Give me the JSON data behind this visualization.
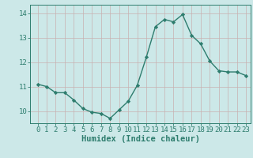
{
  "x": [
    0,
    1,
    2,
    3,
    4,
    5,
    6,
    7,
    8,
    9,
    10,
    11,
    12,
    13,
    14,
    15,
    16,
    17,
    18,
    19,
    20,
    21,
    22,
    23
  ],
  "y": [
    11.1,
    11.0,
    10.75,
    10.75,
    10.45,
    10.1,
    9.95,
    9.9,
    9.7,
    10.05,
    10.4,
    11.05,
    12.2,
    13.45,
    13.75,
    13.65,
    13.95,
    13.1,
    12.75,
    12.05,
    11.65,
    11.6,
    11.6,
    11.45
  ],
  "line_color": "#2e7d6e",
  "marker": "D",
  "marker_size": 2.2,
  "bg_color": "#cce8e8",
  "grid_color_v": "#c8b0b0",
  "grid_color_h": "#c8b0b0",
  "xlabel": "Humidex (Indice chaleur)",
  "xlabel_fontsize": 7.5,
  "tick_fontsize": 6.5,
  "ylim": [
    9.5,
    14.35
  ],
  "yticks": [
    10,
    11,
    12,
    13,
    14
  ],
  "xticks": [
    0,
    1,
    2,
    3,
    4,
    5,
    6,
    7,
    8,
    9,
    10,
    11,
    12,
    13,
    14,
    15,
    16,
    17,
    18,
    19,
    20,
    21,
    22,
    23
  ],
  "line_width": 1.0
}
